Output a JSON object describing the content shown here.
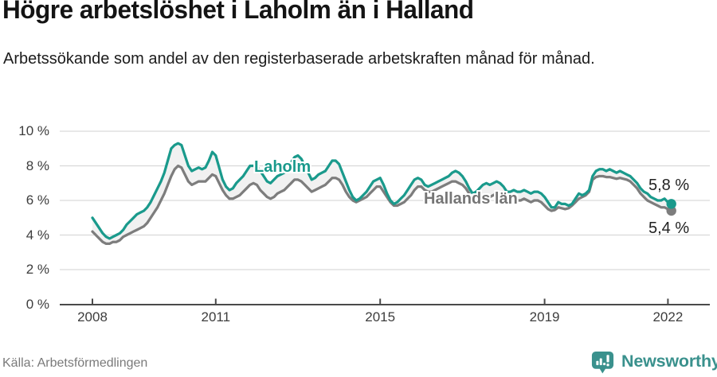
{
  "chart_data": {
    "type": "line",
    "title": "Högre arbetslöshet i Laholm än i Halland",
    "subtitle": "Arbetssökande som andel av den registerbaserade arbetskraften månad för månad.",
    "unit": "%",
    "frequency": "monthly",
    "x_start_year": 2008,
    "x_start_month": 1,
    "x_end_year": 2022,
    "x_end_month": 2,
    "ylim": [
      0,
      10
    ],
    "grid": true,
    "legend_position": "inline-labels",
    "band_fill": "#f1f1f1",
    "grid_color": "#d9d9d9",
    "axis_color": "#4a4a4a",
    "yticks": [
      {
        "value": 0,
        "label": "0 %"
      },
      {
        "value": 2,
        "label": "2 %"
      },
      {
        "value": 4,
        "label": "4 %"
      },
      {
        "value": 6,
        "label": "6 %"
      },
      {
        "value": 8,
        "label": "8 %"
      },
      {
        "value": 10,
        "label": "10 %"
      }
    ],
    "xticks": [
      {
        "year": 2008,
        "label": "2008"
      },
      {
        "year": 2011,
        "label": "2011"
      },
      {
        "year": 2015,
        "label": "2015"
      },
      {
        "year": 2019,
        "label": "2019"
      },
      {
        "year": 2022,
        "label": "2022"
      }
    ],
    "series": [
      {
        "name": "Laholm",
        "color": "#1a9a8c",
        "end_label": "5,8 %",
        "end_value": 5.8,
        "values": [
          5.0,
          4.7,
          4.4,
          4.1,
          3.9,
          3.8,
          3.9,
          4.0,
          4.1,
          4.3,
          4.6,
          4.8,
          5.0,
          5.2,
          5.3,
          5.4,
          5.6,
          5.9,
          6.3,
          6.7,
          7.1,
          7.6,
          8.3,
          9.0,
          9.2,
          9.3,
          9.2,
          8.6,
          8.0,
          7.7,
          7.8,
          7.9,
          7.8,
          7.9,
          8.3,
          8.8,
          8.6,
          7.9,
          7.2,
          6.8,
          6.6,
          6.7,
          7.0,
          7.2,
          7.4,
          7.7,
          8.0,
          8.0,
          8.0,
          7.7,
          7.4,
          7.1,
          7.0,
          7.2,
          7.4,
          7.5,
          7.6,
          7.9,
          8.2,
          8.5,
          8.6,
          8.4,
          8.0,
          7.6,
          7.2,
          7.3,
          7.5,
          7.6,
          7.7,
          8.0,
          8.3,
          8.3,
          8.1,
          7.6,
          7.1,
          6.6,
          6.2,
          6.0,
          6.1,
          6.3,
          6.5,
          6.8,
          7.1,
          7.2,
          7.3,
          6.9,
          6.4,
          6.0,
          5.8,
          5.9,
          6.1,
          6.3,
          6.6,
          6.9,
          7.2,
          7.3,
          7.2,
          6.9,
          6.8,
          6.9,
          7.0,
          7.1,
          7.2,
          7.3,
          7.4,
          7.6,
          7.7,
          7.6,
          7.4,
          7.1,
          6.7,
          6.4,
          6.5,
          6.7,
          6.9,
          7.0,
          6.9,
          7.0,
          7.1,
          7.0,
          6.8,
          6.5,
          6.5,
          6.6,
          6.5,
          6.5,
          6.6,
          6.5,
          6.4,
          6.5,
          6.5,
          6.4,
          6.2,
          5.9,
          5.6,
          5.6,
          5.9,
          5.8,
          5.8,
          5.7,
          5.8,
          6.1,
          6.4,
          6.3,
          6.4,
          6.6,
          7.4,
          7.7,
          7.8,
          7.8,
          7.7,
          7.8,
          7.7,
          7.6,
          7.7,
          7.6,
          7.5,
          7.4,
          7.2,
          7.0,
          6.7,
          6.5,
          6.4,
          6.2,
          6.1,
          6.0,
          6.0,
          6.1,
          5.9,
          5.8
        ]
      },
      {
        "name": "Hallands län",
        "color": "#7d7d7d",
        "end_label": "5,4 %",
        "end_value": 5.4,
        "values": [
          4.2,
          4.0,
          3.8,
          3.6,
          3.5,
          3.5,
          3.6,
          3.6,
          3.7,
          3.9,
          4.0,
          4.1,
          4.2,
          4.3,
          4.4,
          4.5,
          4.7,
          5.0,
          5.3,
          5.6,
          6.0,
          6.4,
          6.9,
          7.4,
          7.8,
          8.0,
          7.9,
          7.5,
          7.1,
          6.9,
          7.0,
          7.1,
          7.1,
          7.1,
          7.3,
          7.5,
          7.4,
          7.0,
          6.6,
          6.3,
          6.1,
          6.1,
          6.2,
          6.3,
          6.5,
          6.7,
          6.9,
          7.0,
          6.9,
          6.6,
          6.4,
          6.2,
          6.1,
          6.2,
          6.4,
          6.5,
          6.6,
          6.8,
          7.0,
          7.2,
          7.2,
          7.1,
          6.9,
          6.7,
          6.5,
          6.6,
          6.7,
          6.8,
          6.9,
          7.1,
          7.3,
          7.3,
          7.2,
          6.9,
          6.5,
          6.2,
          6.0,
          5.9,
          6.0,
          6.1,
          6.2,
          6.4,
          6.6,
          6.8,
          6.8,
          6.5,
          6.2,
          5.9,
          5.7,
          5.7,
          5.8,
          5.9,
          6.1,
          6.3,
          6.6,
          6.8,
          6.8,
          6.6,
          6.5,
          6.5,
          6.6,
          6.7,
          6.8,
          6.9,
          7.0,
          7.1,
          7.1,
          7.0,
          6.9,
          6.7,
          6.4,
          6.1,
          6.0,
          6.1,
          6.2,
          6.3,
          6.2,
          6.3,
          6.4,
          6.3,
          6.2,
          6.0,
          6.0,
          6.1,
          6.0,
          6.0,
          6.1,
          6.0,
          5.9,
          6.0,
          6.0,
          5.9,
          5.7,
          5.5,
          5.4,
          5.45,
          5.6,
          5.55,
          5.5,
          5.55,
          5.7,
          5.9,
          6.1,
          6.2,
          6.3,
          6.5,
          7.2,
          7.35,
          7.4,
          7.4,
          7.35,
          7.35,
          7.3,
          7.25,
          7.3,
          7.25,
          7.2,
          7.1,
          6.9,
          6.7,
          6.4,
          6.2,
          6.0,
          5.9,
          5.8,
          5.7,
          5.6,
          5.6,
          5.5,
          5.4
        ]
      }
    ]
  },
  "footer": {
    "source": "Källa: Arbetsförmedlingen",
    "brand_name": "Newsworthy",
    "brand_icon": "newsworthy-pin-barchart-icon",
    "brand_color": "#3a918d"
  }
}
